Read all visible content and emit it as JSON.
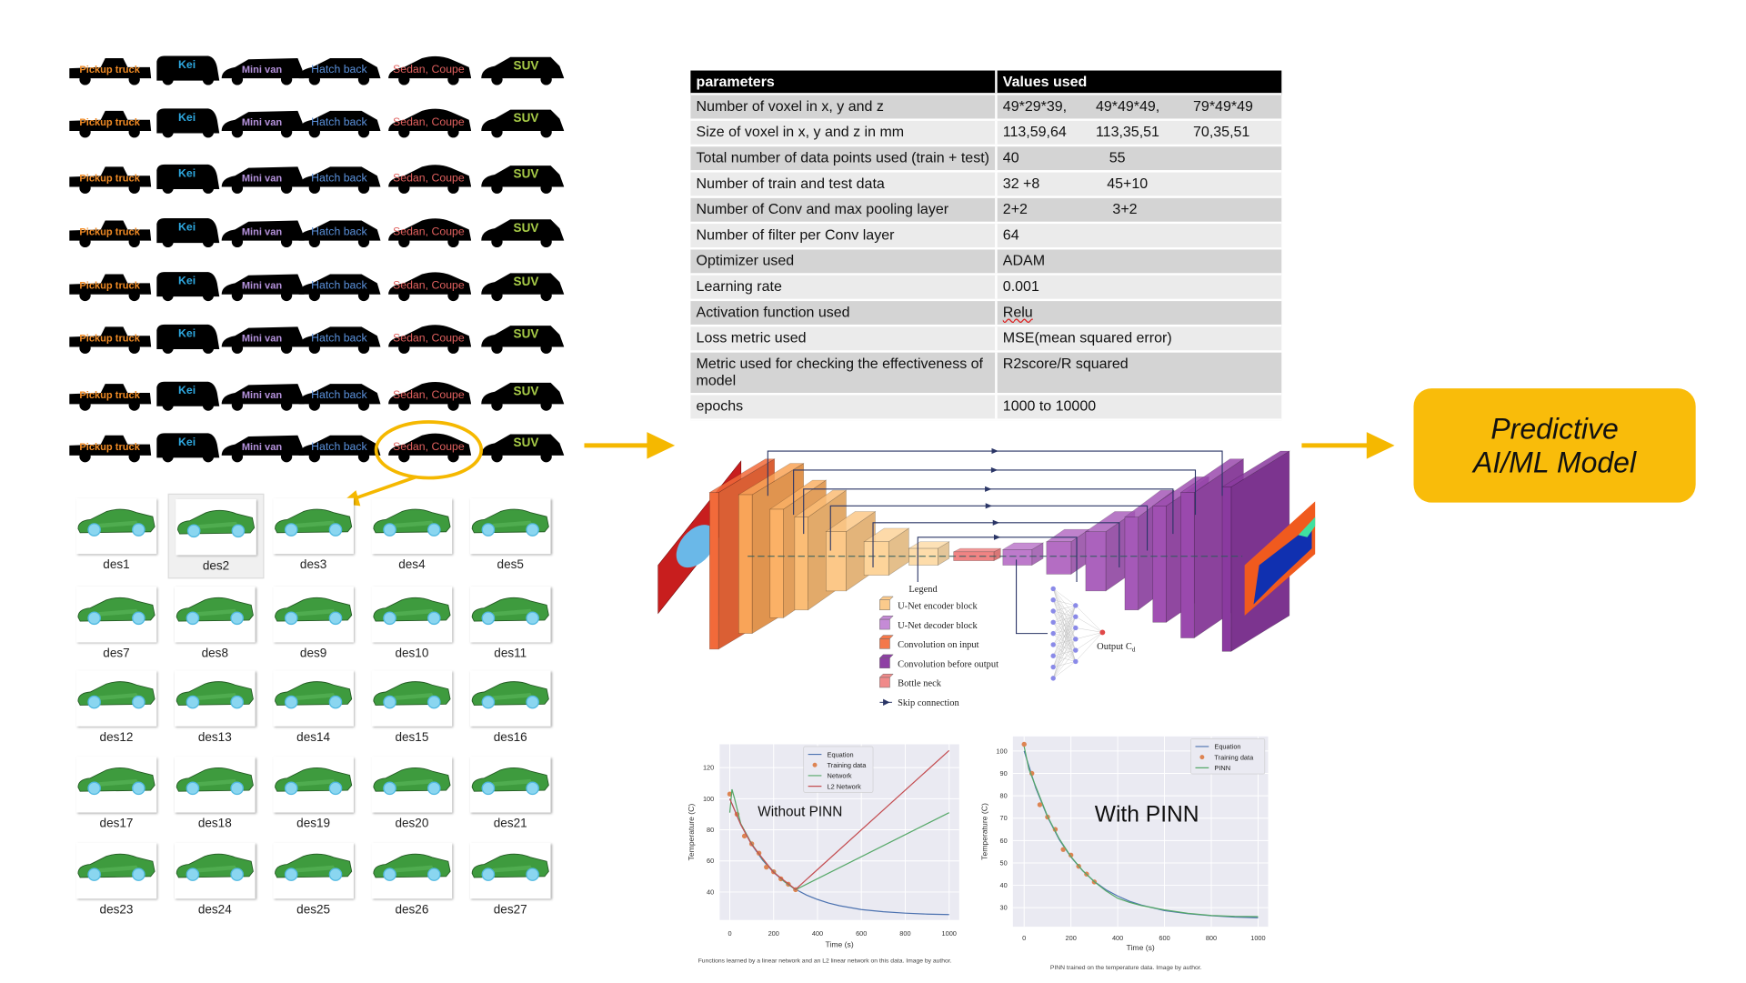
{
  "silhouettes": {
    "labels": [
      "Pickup truck",
      "Kei",
      "Mini van",
      "Hatch back",
      "Sedan, Coupe",
      "SUV"
    ],
    "label_colors": [
      "#F08A24",
      "#2EA8E0",
      "#B592DC",
      "#5A90DA",
      "#E0605E",
      "#A8CC48"
    ],
    "rows": 8,
    "highlighted": {
      "row": 8,
      "label": "Sedan, Coupe"
    },
    "highlight_color": "#F5B800"
  },
  "designs": {
    "items": [
      "des1",
      "des2",
      "des3",
      "des4",
      "des5",
      "des7",
      "des8",
      "des9",
      "des10",
      "des11",
      "des12",
      "des13",
      "des14",
      "des15",
      "des16",
      "des17",
      "des18",
      "des19",
      "des20",
      "des21",
      "des23",
      "des24",
      "des25",
      "des26",
      "des27"
    ],
    "selected": "des2",
    "car_color": "#3E9B3E",
    "wheel_color": "#8AD6F0"
  },
  "table": {
    "headers": [
      "parameters",
      "Values used"
    ],
    "rows": [
      {
        "param": "Number of voxel in x, y and z",
        "values": [
          "49*29*39,",
          "49*49*49,",
          "79*49*49"
        ]
      },
      {
        "param": "Size of voxel in x, y and z in mm",
        "values": [
          "113,59,64",
          "113,35,51",
          "70,35,51"
        ]
      },
      {
        "param": "Total number of data points used (train + test)",
        "values": [
          "40",
          "55"
        ]
      },
      {
        "param": "Number of train and test data",
        "values": [
          "32 +8",
          "45+10"
        ]
      },
      {
        "param": "Number of Conv and max pooling layer",
        "values": [
          "2+2",
          "3+2"
        ]
      },
      {
        "param": "Number of filter per Conv layer",
        "values": [
          "64"
        ]
      },
      {
        "param": "Optimizer used",
        "values": [
          "ADAM"
        ]
      },
      {
        "param": "Learning rate",
        "values": [
          "0.001"
        ]
      },
      {
        "param": "Activation function  used",
        "values": [
          "Relu"
        ]
      },
      {
        "param": "Loss metric used",
        "values": [
          "MSE(mean squared error)"
        ]
      },
      {
        "param": "Metric used for checking the effectiveness of model",
        "values": [
          "R2score/R squared"
        ]
      },
      {
        "param": "epochs",
        "values": [
          "1000 to 10000"
        ]
      }
    ]
  },
  "unet": {
    "legend_title": "Legend",
    "legend": [
      {
        "label": "U-Net encoder block",
        "color": "#FCCB8C"
      },
      {
        "label": "U-Net decoder block",
        "color": "#C58BD6"
      },
      {
        "label": "Convolution on input",
        "color": "#F4784A"
      },
      {
        "label": "Convolution before output",
        "color": "#8E3FA4"
      },
      {
        "label": "Bottle neck",
        "color": "#F08A8A"
      },
      {
        "label": "Skip connection",
        "color": "#2A3566"
      }
    ],
    "output_label": "Output C",
    "output_sub": "d"
  },
  "chart_data": [
    {
      "type": "line",
      "annotation": "Without PINN",
      "xlabel": "Time (s)",
      "ylabel": "Temperature (C)",
      "xlim": [
        -46,
        1046
      ],
      "ylim": [
        22,
        135
      ],
      "xticks": [
        0,
        200,
        400,
        600,
        800,
        1000
      ],
      "yticks": [
        40,
        60,
        80,
        100,
        120
      ],
      "grid": true,
      "legend_position": "top-center",
      "caption": "Functions learned by a linear network and an L2 linear network on this data. Image by author.",
      "series": [
        {
          "name": "Equation",
          "kind": "line",
          "color": "#4C72B0",
          "points": [
            [
              0,
              100
            ],
            [
              50,
              83.4
            ],
            [
              100,
              70.5
            ],
            [
              150,
              60.4
            ],
            [
              200,
              52.6
            ],
            [
              250,
              46.5
            ],
            [
              300,
              41.7
            ],
            [
              350,
              38
            ],
            [
              400,
              35.2
            ],
            [
              450,
              32.9
            ],
            [
              500,
              31.2
            ],
            [
              600,
              28.7
            ],
            [
              700,
              27.3
            ],
            [
              800,
              26.4
            ],
            [
              900,
              25.8
            ],
            [
              1000,
              25.5
            ]
          ]
        },
        {
          "name": "Training data",
          "kind": "scatter",
          "color": "#DD8452",
          "points": [
            [
              0,
              103
            ],
            [
              33,
              90
            ],
            [
              67,
              76
            ],
            [
              100,
              71
            ],
            [
              133,
              65
            ],
            [
              167,
              56
            ],
            [
              200,
              53
            ],
            [
              233,
              48.5
            ],
            [
              267,
              45
            ],
            [
              300,
              41.5
            ]
          ]
        },
        {
          "name": "Network",
          "kind": "line",
          "color": "#55A868",
          "points": [
            [
              0,
              91
            ],
            [
              10,
              106
            ],
            [
              22,
              100
            ],
            [
              50,
              84
            ],
            [
              100,
              71
            ],
            [
              150,
              61
            ],
            [
              200,
              53
            ],
            [
              250,
              46.5
            ],
            [
              300,
              41.5
            ],
            [
              1000,
              91
            ]
          ]
        },
        {
          "name": "L2 Network",
          "kind": "line",
          "color": "#C44E52",
          "points": [
            [
              0,
              100
            ],
            [
              50,
              83.4
            ],
            [
              100,
              70.5
            ],
            [
              200,
              52.6
            ],
            [
              300,
              41.7
            ],
            [
              1000,
              131
            ]
          ]
        }
      ]
    },
    {
      "type": "line",
      "annotation": "With PINN",
      "xlabel": "Time (s)",
      "ylabel": "Temperature (C)",
      "xlim": [
        -48,
        1043
      ],
      "ylim": [
        21.5,
        106.5
      ],
      "xticks": [
        0,
        200,
        400,
        600,
        800,
        1000
      ],
      "yticks": [
        30,
        40,
        50,
        60,
        70,
        80,
        90,
        100
      ],
      "grid": true,
      "legend_position": "top-right",
      "caption": "PINN trained on the temperature data. Image by author.",
      "series": [
        {
          "name": "Equation",
          "kind": "line",
          "color": "#4C72B0",
          "points": [
            [
              0,
              100
            ],
            [
              50,
              83.4
            ],
            [
              100,
              70.5
            ],
            [
              150,
              60.4
            ],
            [
              200,
              52.6
            ],
            [
              250,
              46.5
            ],
            [
              300,
              41.7
            ],
            [
              350,
              38
            ],
            [
              400,
              35.2
            ],
            [
              450,
              32.9
            ],
            [
              500,
              31.2
            ],
            [
              600,
              28.7
            ],
            [
              700,
              27.3
            ],
            [
              800,
              26.4
            ],
            [
              900,
              25.8
            ],
            [
              1000,
              25.5
            ]
          ]
        },
        {
          "name": "Training data",
          "kind": "scatter",
          "color": "#DD8452",
          "points": [
            [
              0,
              103
            ],
            [
              33,
              90
            ],
            [
              67,
              76
            ],
            [
              100,
              70.5
            ],
            [
              133,
              65
            ],
            [
              167,
              56
            ],
            [
              200,
              53.5
            ],
            [
              233,
              48.5
            ],
            [
              267,
              45
            ],
            [
              300,
              41.5
            ]
          ]
        },
        {
          "name": "PINN",
          "kind": "line",
          "color": "#55A868",
          "points": [
            [
              0,
              102
            ],
            [
              20,
              92
            ],
            [
              50,
              84
            ],
            [
              100,
              70.8
            ],
            [
              150,
              60.8
            ],
            [
              200,
              52.8
            ],
            [
              250,
              46.6
            ],
            [
              300,
              41.6
            ],
            [
              350,
              37.5
            ],
            [
              400,
              34.2
            ],
            [
              450,
              32.4
            ],
            [
              500,
              31
            ],
            [
              600,
              29
            ],
            [
              700,
              27.5
            ],
            [
              800,
              26.5
            ],
            [
              900,
              26.1
            ],
            [
              1000,
              26
            ]
          ]
        }
      ]
    }
  ],
  "model_box": {
    "line1": "Predictive",
    "line2": "AI/ML Model",
    "color": "#F9BC0A"
  },
  "arrow_color": "#F5B800"
}
